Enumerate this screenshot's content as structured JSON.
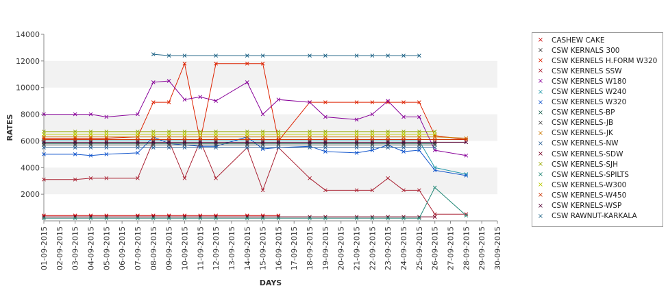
{
  "chart_data": {
    "type": "line",
    "xlabel": "DAYS",
    "ylabel": "RATES",
    "ylim": [
      0,
      14000
    ],
    "yticks": [
      2000,
      4000,
      6000,
      8000,
      10000,
      12000,
      14000
    ],
    "categories": [
      "01-09-2015",
      "02-09-2015",
      "03-09-2015",
      "04-09-2015",
      "05-09-2015",
      "06-09-2015",
      "07-09-2015",
      "08-09-2015",
      "09-09-2015",
      "10-09-2015",
      "11-09-2015",
      "12-09-2015",
      "13-09-2015",
      "14-09-2015",
      "15-09-2015",
      "16-09-2015",
      "17-09-2015",
      "18-09-2015",
      "19-09-2015",
      "20-09-2015",
      "21-09-2015",
      "22-09-2015",
      "23-09-2015",
      "24-09-2015",
      "25-09-2015",
      "26-09-2015",
      "27-09-2015",
      "28-09-2015",
      "29-09-2015",
      "30-09-2015"
    ],
    "legend_position": "right",
    "grid_bands": true,
    "series": [
      {
        "name": "CASHEW CAKE",
        "color": "#cc0000",
        "values": [
          400,
          null,
          400,
          400,
          400,
          null,
          400,
          400,
          400,
          400,
          400,
          400,
          null,
          400,
          400,
          400,
          null,
          null,
          null,
          null,
          null,
          null,
          null,
          null,
          null,
          null,
          null,
          null,
          null,
          null
        ]
      },
      {
        "name": "CSW KERNALS 300",
        "color": "#333333",
        "values": [
          null,
          null,
          null,
          null,
          null,
          null,
          null,
          null,
          null,
          null,
          null,
          null,
          null,
          null,
          null,
          null,
          null,
          null,
          null,
          null,
          null,
          null,
          null,
          null,
          null,
          null,
          null,
          null,
          null,
          null
        ]
      },
      {
        "name": "CSW KERNELS H.FORM W320",
        "color": "#dd2200",
        "values": [
          6200,
          null,
          6200,
          6200,
          6200,
          null,
          6300,
          8900,
          8900,
          11800,
          6000,
          11800,
          null,
          11800,
          11800,
          6000,
          null,
          8900,
          8900,
          null,
          8900,
          8900,
          8900,
          8900,
          8900,
          6400,
          null,
          6100,
          null,
          null
        ]
      },
      {
        "name": "CSW KERNELS SSW",
        "color": "#aa2233",
        "values": [
          3100,
          null,
          3100,
          3200,
          3200,
          null,
          3200,
          6000,
          6000,
          3200,
          6000,
          3200,
          null,
          5500,
          2300,
          5500,
          null,
          3200,
          2300,
          null,
          2300,
          2300,
          3200,
          2300,
          2300,
          500,
          null,
          500,
          null,
          null
        ]
      },
      {
        "name": "CSW KERNELS W180",
        "color": "#880099",
        "values": [
          8000,
          null,
          8000,
          8000,
          7800,
          null,
          8000,
          10400,
          10500,
          9100,
          9300,
          9000,
          null,
          10400,
          8000,
          9100,
          null,
          8900,
          7800,
          null,
          7600,
          8000,
          9000,
          7800,
          7800,
          5300,
          null,
          4900,
          null,
          null
        ]
      },
      {
        "name": "CSW KERNELS W240",
        "color": "#2299aa",
        "values": [
          6000,
          null,
          6000,
          6000,
          6000,
          null,
          6000,
          6000,
          6000,
          6000,
          6000,
          6000,
          null,
          6000,
          6000,
          6000,
          null,
          6000,
          6000,
          null,
          6000,
          6000,
          6000,
          6000,
          6000,
          4000,
          null,
          3500,
          null,
          null
        ]
      },
      {
        "name": "CSW KERNELS W320",
        "color": "#1155cc",
        "values": [
          5000,
          null,
          5000,
          4900,
          5000,
          null,
          5100,
          6300,
          5800,
          5700,
          5600,
          5600,
          null,
          6300,
          5400,
          5500,
          null,
          5600,
          5200,
          null,
          5100,
          5300,
          5700,
          5200,
          5300,
          3800,
          null,
          3400,
          null,
          null
        ]
      },
      {
        "name": "CSW KERNELS-BP",
        "color": "#226655",
        "values": [
          5800,
          null,
          5800,
          5800,
          5800,
          null,
          5800,
          5800,
          5800,
          5800,
          5800,
          5800,
          null,
          5800,
          5800,
          5800,
          null,
          5800,
          5800,
          null,
          5800,
          5800,
          5800,
          5800,
          5800,
          5800,
          null,
          null,
          null,
          null
        ]
      },
      {
        "name": "CSW KERNELS-JB",
        "color": "#444444",
        "values": [
          5700,
          null,
          5700,
          5700,
          5700,
          null,
          5700,
          5700,
          5700,
          5700,
          5700,
          5700,
          null,
          5700,
          5700,
          5700,
          null,
          5700,
          5700,
          null,
          5700,
          5700,
          5700,
          5700,
          5700,
          5700,
          null,
          null,
          null,
          null
        ]
      },
      {
        "name": "CSW KERNELS-JK",
        "color": "#cc7700",
        "values": [
          6300,
          null,
          6300,
          6300,
          6300,
          null,
          6300,
          6300,
          6300,
          6300,
          6300,
          6300,
          null,
          6300,
          6300,
          6300,
          null,
          6300,
          6300,
          null,
          6300,
          6300,
          6300,
          6300,
          6300,
          6300,
          null,
          6200,
          null,
          null
        ]
      },
      {
        "name": "CSW KERNELS-NW",
        "color": "#336699",
        "values": [
          5500,
          null,
          5500,
          5500,
          5500,
          null,
          5500,
          5500,
          5500,
          5500,
          5500,
          5500,
          null,
          5500,
          5500,
          5500,
          null,
          5500,
          5500,
          null,
          5500,
          5500,
          5500,
          5500,
          5500,
          5500,
          null,
          null,
          null,
          null
        ]
      },
      {
        "name": "CSW KERNELS-SDW",
        "color": "#770022",
        "values": [
          300,
          null,
          300,
          300,
          300,
          null,
          300,
          300,
          300,
          300,
          300,
          300,
          null,
          300,
          300,
          300,
          null,
          300,
          300,
          null,
          300,
          300,
          300,
          300,
          300,
          300,
          null,
          null,
          null,
          null
        ]
      },
      {
        "name": "CSW KERNELS-SJH",
        "color": "#99aa00",
        "values": [
          6700,
          null,
          6700,
          6700,
          6700,
          null,
          6700,
          6700,
          6700,
          6700,
          6700,
          6700,
          null,
          6700,
          6700,
          6700,
          null,
          6700,
          6700,
          null,
          6700,
          6700,
          6700,
          6700,
          6700,
          6700,
          null,
          null,
          null,
          null
        ]
      },
      {
        "name": "CSW KERNELS-SPILTS",
        "color": "#228877",
        "values": [
          200,
          null,
          200,
          200,
          200,
          null,
          200,
          200,
          200,
          200,
          200,
          200,
          null,
          200,
          200,
          200,
          null,
          200,
          200,
          null,
          200,
          200,
          200,
          200,
          200,
          2500,
          null,
          400,
          null,
          null
        ]
      },
      {
        "name": "CSW KERNELS-W300",
        "color": "#bbcc00",
        "values": [
          6500,
          null,
          6500,
          6500,
          6500,
          null,
          6500,
          6500,
          6500,
          6500,
          6500,
          6500,
          null,
          6500,
          6500,
          6500,
          null,
          6500,
          6500,
          null,
          6500,
          6500,
          6500,
          6500,
          6500,
          6500,
          null,
          null,
          null,
          null
        ]
      },
      {
        "name": "CSW KERNELS-W450",
        "color": "#cc3300",
        "values": [
          6100,
          null,
          6100,
          6100,
          6100,
          null,
          6100,
          6100,
          6100,
          6100,
          6100,
          6100,
          null,
          6100,
          6100,
          6100,
          null,
          6100,
          6100,
          null,
          6100,
          6100,
          6100,
          6100,
          6100,
          6100,
          null,
          6100,
          null,
          null
        ]
      },
      {
        "name": "CSW KERNELS-WSP",
        "color": "#550033",
        "values": [
          5900,
          null,
          5900,
          5900,
          5900,
          null,
          5900,
          5900,
          5900,
          5900,
          5900,
          5900,
          null,
          5900,
          5900,
          5900,
          null,
          5900,
          5900,
          null,
          5900,
          5900,
          5900,
          5900,
          5900,
          5900,
          null,
          5900,
          null,
          null
        ]
      },
      {
        "name": "CSW RAWNUT-KARKALA",
        "color": "#226688",
        "values": [
          null,
          null,
          null,
          null,
          null,
          null,
          null,
          12500,
          12400,
          12400,
          null,
          12400,
          null,
          12400,
          12400,
          null,
          null,
          12400,
          12400,
          null,
          12400,
          12400,
          12400,
          12400,
          12400,
          null,
          null,
          null,
          null,
          null
        ]
      }
    ]
  },
  "legend": {
    "items": [
      {
        "label": "CASHEW CAKE",
        "color": "#cc0000"
      },
      {
        "label": "CSW KERNALS 300",
        "color": "#333333"
      },
      {
        "label": "CSW KERNELS H.FORM W320",
        "color": "#dd2200"
      },
      {
        "label": "CSW KERNELS SSW",
        "color": "#aa2233"
      },
      {
        "label": "CSW KERNELS W180",
        "color": "#880099"
      },
      {
        "label": "CSW KERNELS W240",
        "color": "#2299aa"
      },
      {
        "label": "CSW KERNELS W320",
        "color": "#1155cc"
      },
      {
        "label": "CSW KERNELS-BP",
        "color": "#226655"
      },
      {
        "label": "CSW KERNELS-JB",
        "color": "#444444"
      },
      {
        "label": "CSW KERNELS-JK",
        "color": "#cc7700"
      },
      {
        "label": "CSW KERNELS-NW",
        "color": "#336699"
      },
      {
        "label": "CSW KERNELS-SDW",
        "color": "#770022"
      },
      {
        "label": "CSW KERNELS-SJH",
        "color": "#99aa00"
      },
      {
        "label": "CSW KERNELS-SPILTS",
        "color": "#228877"
      },
      {
        "label": "CSW KERNELS-W300",
        "color": "#bbcc00"
      },
      {
        "label": "CSW KERNELS-W450",
        "color": "#cc3300"
      },
      {
        "label": "CSW KERNELS-WSP",
        "color": "#550033"
      },
      {
        "label": "CSW RAWNUT-KARKALA",
        "color": "#226688"
      }
    ]
  }
}
